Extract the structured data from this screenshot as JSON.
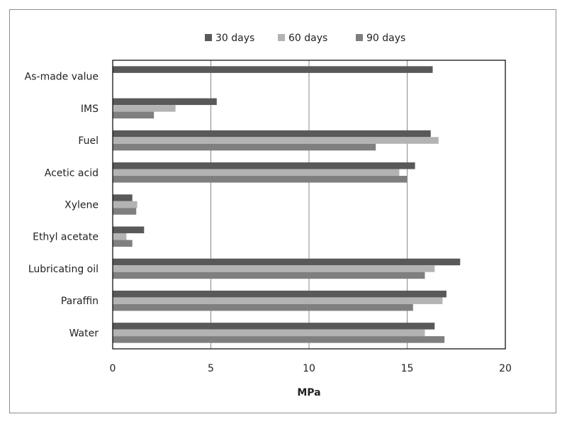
{
  "chart_data": {
    "type": "bar",
    "orientation": "horizontal",
    "categories": [
      "As-made value",
      "IMS",
      "Fuel",
      "Acetic acid",
      "Xylene",
      "Ethyl acetate",
      "Lubricating oil",
      "Paraffin",
      "Water"
    ],
    "series": [
      {
        "name": "30 days",
        "color": "#595959",
        "values": [
          16.3,
          5.3,
          16.2,
          15.4,
          1.0,
          1.6,
          17.7,
          17.0,
          16.4
        ]
      },
      {
        "name": "60 days",
        "color": "#b3b3b3",
        "values": [
          null,
          3.2,
          16.6,
          14.6,
          1.25,
          0.7,
          16.4,
          16.8,
          15.9
        ]
      },
      {
        "name": "90 days",
        "color": "#7f7f7f",
        "values": [
          null,
          2.1,
          13.4,
          15.0,
          1.2,
          1.0,
          15.9,
          15.3,
          16.9
        ]
      }
    ],
    "xlabel": "MPa",
    "xlim": [
      0,
      20
    ],
    "xticks": [
      0,
      5,
      10,
      15,
      20
    ],
    "grid": "vertical",
    "legend": "top"
  }
}
